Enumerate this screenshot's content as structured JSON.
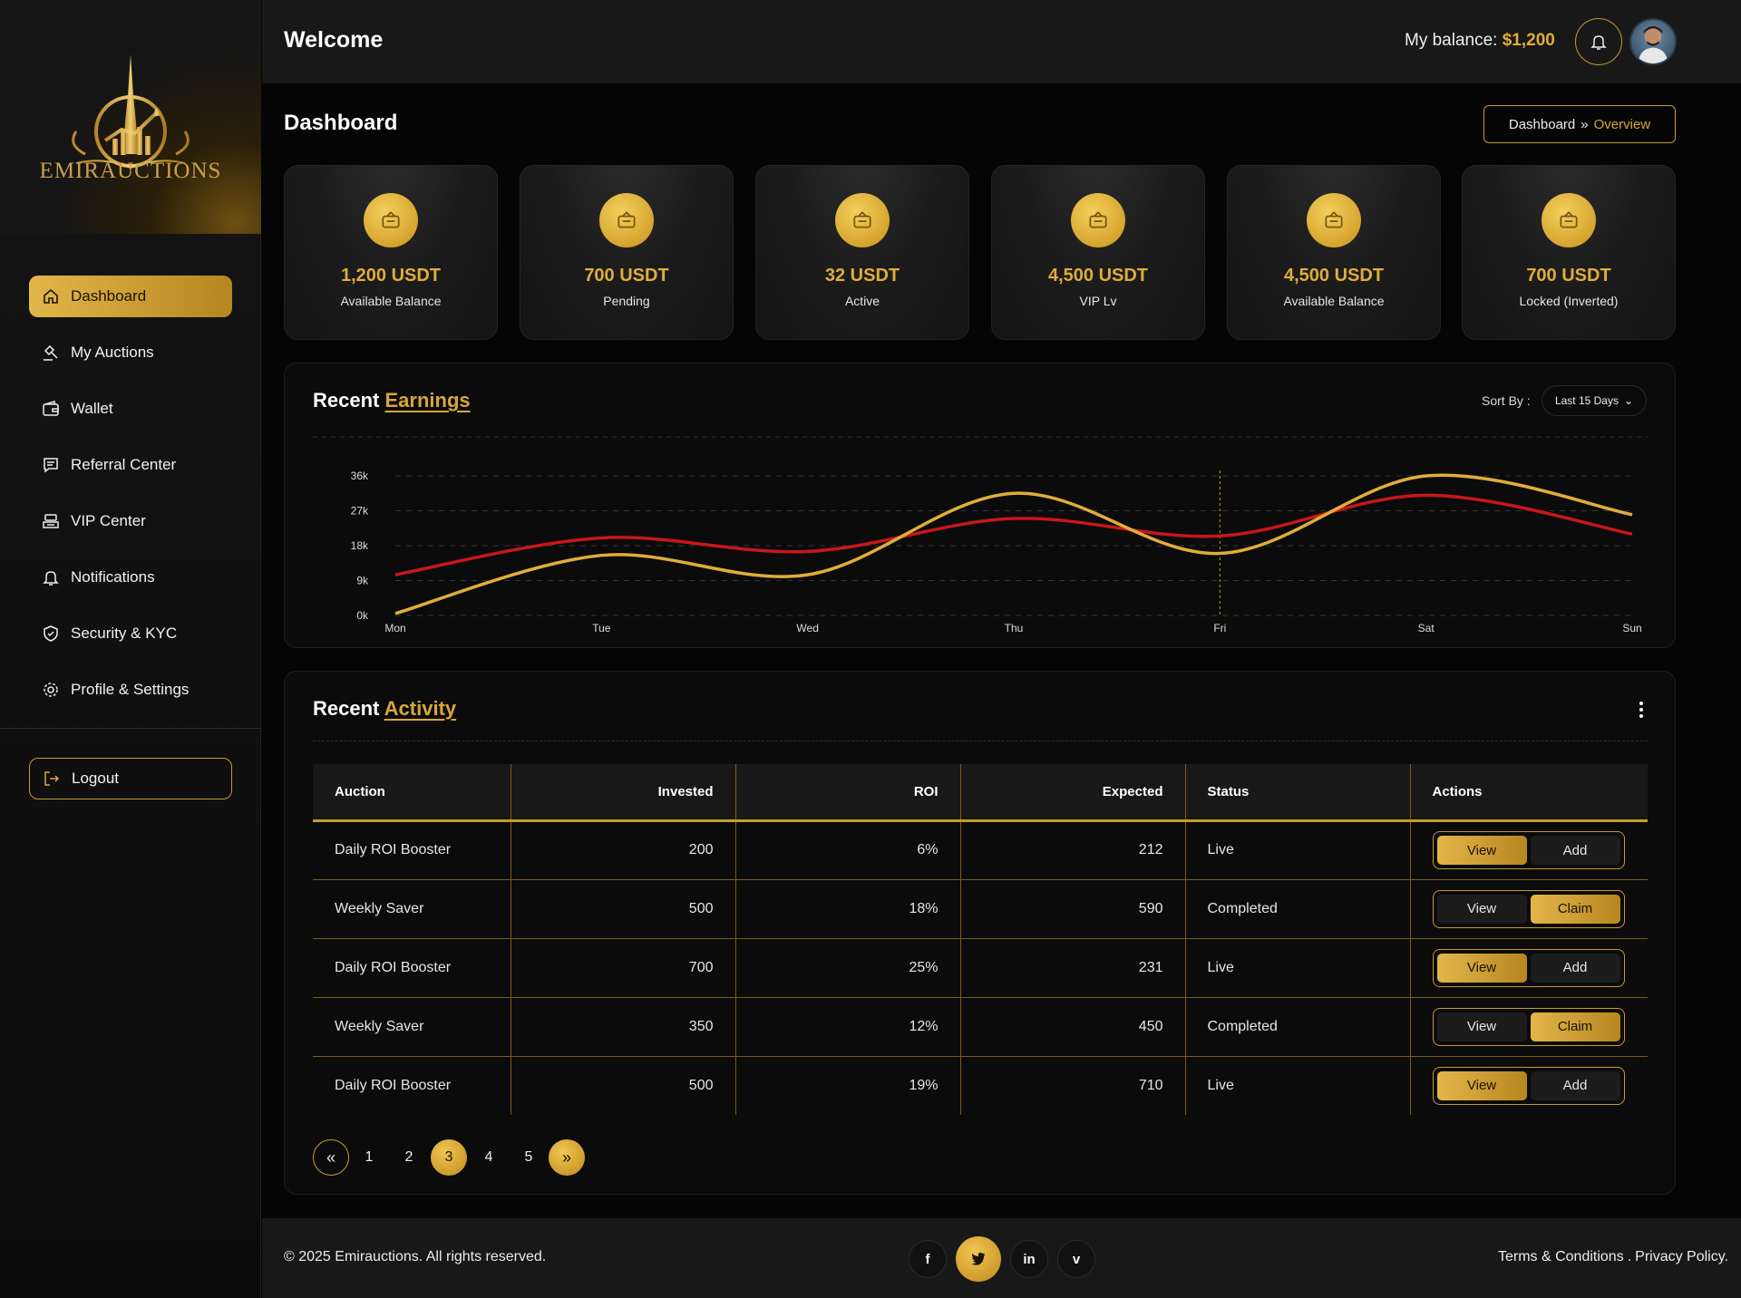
{
  "brand": {
    "name": "EMIRAUCTIONS"
  },
  "sidebar": {
    "items": [
      {
        "label": "Dashboard",
        "icon": "home-icon",
        "active": true
      },
      {
        "label": "My Auctions",
        "icon": "gavel-icon"
      },
      {
        "label": "Wallet",
        "icon": "wallet-icon"
      },
      {
        "label": "Referral Center",
        "icon": "chat-icon"
      },
      {
        "label": "VIP Center",
        "icon": "vip-icon"
      },
      {
        "label": "Notifications",
        "icon": "bell-icon"
      },
      {
        "label": "Security & KYC",
        "icon": "shield-icon"
      },
      {
        "label": "Profile & Settings",
        "icon": "gear-icon"
      }
    ],
    "logout_label": "Logout"
  },
  "header": {
    "welcome": "Welcome",
    "balance_label": "My balance:",
    "balance_value": "$1,200"
  },
  "page": {
    "title": "Dashboard",
    "breadcrumb": {
      "parent": "Dashboard",
      "current": "Overview"
    }
  },
  "stats": [
    {
      "value": "1,200 USDT",
      "label": "Available Balance"
    },
    {
      "value": "700 USDT",
      "label": "Pending"
    },
    {
      "value": "32 USDT",
      "label": "Active"
    },
    {
      "value": "4,500 USDT",
      "label": "VIP Lv"
    },
    {
      "value": "4,500 USDT",
      "label": "Available Balance"
    },
    {
      "value": "700 USDT",
      "label": "Locked (Inverted)"
    }
  ],
  "earnings": {
    "title_plain": "Recent",
    "title_highlight": "Earnings",
    "sort_label": "Sort By :",
    "sort_value": "Last 15 Days"
  },
  "chart_data": {
    "type": "line",
    "categories": [
      "Mon",
      "Tue",
      "Wed",
      "Thu",
      "Fri",
      "Sat",
      "Sun"
    ],
    "y_ticks": [
      "0k",
      "9k",
      "18k",
      "27k",
      "36k"
    ],
    "ylim": [
      0,
      36
    ],
    "grid": true,
    "highlight_category": "Fri",
    "series": [
      {
        "color": "#c8171a",
        "values": [
          10.5,
          20,
          16.5,
          25,
          20.5,
          31,
          21
        ]
      },
      {
        "color": "#e0ad3a",
        "values": [
          0.5,
          15.5,
          10.5,
          31.5,
          16,
          36,
          26
        ]
      }
    ]
  },
  "activity": {
    "title_plain": "Recent",
    "title_highlight": "Activity",
    "columns": [
      "Auction",
      "Invested",
      "ROI",
      "Expected",
      "Status",
      "Actions"
    ],
    "rows": [
      {
        "auction": "Daily ROI Booster",
        "invested": "200",
        "roi": "6%",
        "expected": "212",
        "status": "Live",
        "btn1": "View",
        "btn2": "Add",
        "active": 1
      },
      {
        "auction": "Weekly Saver",
        "invested": "500",
        "roi": "18%",
        "expected": "590",
        "status": "Completed",
        "btn1": "View",
        "btn2": "Claim",
        "active": 2
      },
      {
        "auction": "Daily ROI Booster",
        "invested": "700",
        "roi": "25%",
        "expected": "231",
        "status": "Live",
        "btn1": "View",
        "btn2": "Add",
        "active": 1
      },
      {
        "auction": "Weekly Saver",
        "invested": "350",
        "roi": "12%",
        "expected": "450",
        "status": "Completed",
        "btn1": "View",
        "btn2": "Claim",
        "active": 2
      },
      {
        "auction": "Daily ROI Booster",
        "invested": "500",
        "roi": "19%",
        "expected": "710",
        "status": "Live",
        "btn1": "View",
        "btn2": "Add",
        "active": 1
      }
    ],
    "pages": [
      "1",
      "2",
      "3",
      "4",
      "5"
    ],
    "current_page": "3"
  },
  "footer": {
    "copyright": "© 2025 Emirauctions. All rights reserved.",
    "socials": [
      {
        "icon": "facebook-icon",
        "glyph": "f"
      },
      {
        "icon": "twitter-icon",
        "glyph": "🐦",
        "active": true
      },
      {
        "icon": "linkedin-icon",
        "glyph": "in"
      },
      {
        "icon": "vimeo-icon",
        "glyph": "v"
      }
    ],
    "terms": "Terms & Conditions",
    "separator": ".",
    "privacy": "Privacy Policy."
  },
  "colors": {
    "gold": "#e0ad3a",
    "red": "#c8171a",
    "bg": "#050505"
  }
}
